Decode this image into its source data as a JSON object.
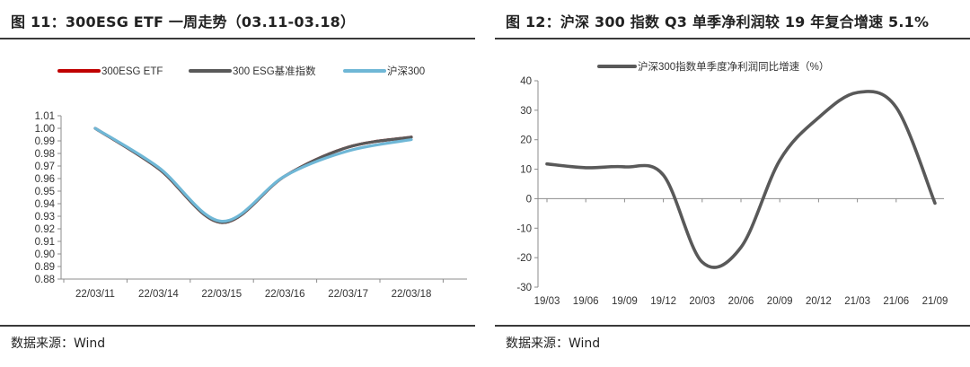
{
  "left_panel": {
    "title": "图 11：300ESG ETF 一周走势（03.11-03.18）",
    "source": "数据来源：Wind"
  },
  "right_panel": {
    "title": "图 12：沪深 300 指数 Q3 单季净利润较 19 年复合增速 5.1%",
    "source": "数据来源：Wind"
  },
  "chart_data": [
    {
      "type": "line",
      "title": "",
      "xlabel": "",
      "ylabel": "",
      "categories": [
        "22/03/11",
        "22/03/14",
        "22/03/15",
        "22/03/16",
        "22/03/17",
        "22/03/18"
      ],
      "ylim": [
        0.88,
        1.01
      ],
      "yticks": [
        1.01,
        1.0,
        0.99,
        0.98,
        0.97,
        0.96,
        0.95,
        0.94,
        0.93,
        0.92,
        0.91,
        0.9,
        0.89,
        0.88
      ],
      "ytick_labels": [
        "1.01",
        "1.00",
        "0.99",
        "0.98",
        "0.97",
        "0.96",
        "0.95",
        "0.94",
        "0.93",
        "0.92",
        "0.91",
        "0.90",
        "0.89",
        "0.88"
      ],
      "legend_position": "top",
      "grid": false,
      "series": [
        {
          "name": "300ESG ETF",
          "color": "#c00000",
          "values": [
            1.0,
            0.968,
            0.925,
            0.962,
            0.985,
            0.993
          ]
        },
        {
          "name": "300 ESG基准指数",
          "color": "#595959",
          "values": [
            1.0,
            0.968,
            0.925,
            0.962,
            0.985,
            0.993
          ]
        },
        {
          "name": "沪深300",
          "color": "#6fb7d6",
          "values": [
            1.0,
            0.969,
            0.926,
            0.962,
            0.982,
            0.991
          ]
        }
      ]
    },
    {
      "type": "line",
      "title": "",
      "xlabel": "",
      "ylabel": "",
      "categories": [
        "19/03",
        "19/06",
        "19/09",
        "19/12",
        "20/03",
        "20/06",
        "20/09",
        "20/12",
        "21/03",
        "21/06",
        "21/09"
      ],
      "ylim": [
        -30,
        40
      ],
      "yticks": [
        40,
        30,
        20,
        10,
        0,
        -10,
        -20,
        -30
      ],
      "ytick_labels": [
        "40",
        "30",
        "20",
        "10",
        "0",
        "-10",
        "-20",
        "-30"
      ],
      "legend_position": "top",
      "grid": false,
      "series": [
        {
          "name": "沪深300指数单季度净利润同比增速（%）",
          "color": "#595959",
          "values": [
            11.8,
            10.5,
            10.8,
            8.0,
            -21.5,
            -16.5,
            13.0,
            27.5,
            36.0,
            31.0,
            -1.5
          ]
        }
      ]
    }
  ]
}
